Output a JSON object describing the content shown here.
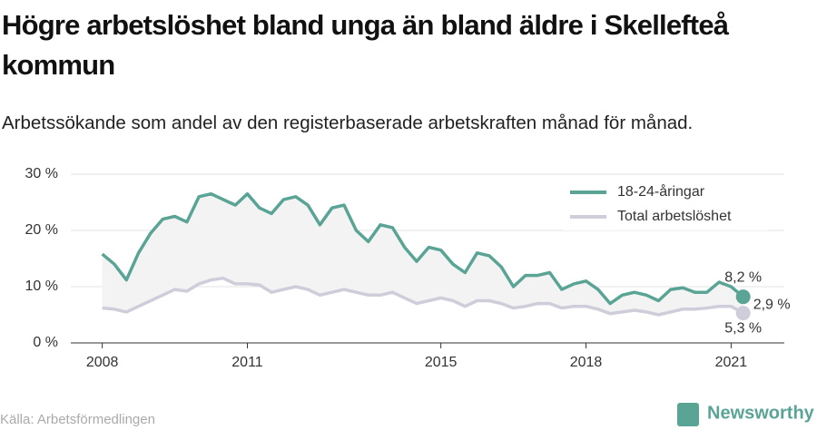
{
  "chart_data": {
    "type": "line",
    "title": "Högre arbetslöshet bland unga än bland äldre i Skellefteå kommun",
    "subtitle": "Arbetssökande som andel av den registerbaserade arbetskraften månad för månad.",
    "source": "Källa: Arbetsförmedlingen",
    "brand": "Newsworthy",
    "x": [
      2008,
      2008.25,
      2008.5,
      2008.75,
      2009,
      2009.25,
      2009.5,
      2009.75,
      2010,
      2010.25,
      2010.5,
      2010.75,
      2011,
      2011.25,
      2011.5,
      2011.75,
      2012,
      2012.25,
      2012.5,
      2012.75,
      2013,
      2013.25,
      2013.5,
      2013.75,
      2014,
      2014.25,
      2014.5,
      2014.75,
      2015,
      2015.25,
      2015.5,
      2015.75,
      2016,
      2016.25,
      2016.5,
      2016.75,
      2017,
      2017.25,
      2017.5,
      2017.75,
      2018,
      2018.25,
      2018.5,
      2018.75,
      2019,
      2019.25,
      2019.5,
      2019.75,
      2020,
      2020.25,
      2020.5,
      2020.75,
      2021,
      2021.25
    ],
    "series": [
      {
        "name": "18-24-åringar",
        "color": "#5aa496",
        "values": [
          15.8,
          14,
          11.2,
          16,
          19.5,
          22,
          22.5,
          21.5,
          26,
          26.5,
          25.5,
          24.5,
          26.5,
          24,
          23,
          25.5,
          26,
          24.5,
          21,
          24,
          24.5,
          20,
          18,
          21,
          20.5,
          17,
          14.5,
          17,
          16.5,
          14,
          12.5,
          16,
          15.5,
          13.5,
          10,
          12,
          12,
          12.5,
          9.5,
          10.5,
          11,
          9.5,
          7,
          8.5,
          9,
          8.5,
          7.5,
          9.5,
          9.8,
          9,
          9,
          10.8,
          10,
          8.2
        ],
        "end_label": "8,2 %"
      },
      {
        "name": "Total arbetslöshet",
        "color": "#cfcdd9",
        "values": [
          6.2,
          6,
          5.5,
          6.5,
          7.5,
          8.5,
          9.5,
          9.2,
          10.5,
          11.2,
          11.5,
          10.5,
          10.5,
          10.3,
          9,
          9.5,
          10,
          9.5,
          8.5,
          9,
          9.5,
          9,
          8.5,
          8.5,
          9,
          8,
          7,
          7.5,
          8,
          7.5,
          6.5,
          7.5,
          7.5,
          7,
          6.2,
          6.5,
          7,
          7,
          6.2,
          6.5,
          6.5,
          6,
          5.2,
          5.5,
          5.8,
          5.5,
          5,
          5.5,
          6,
          6,
          6.2,
          6.5,
          6.5,
          5.3
        ],
        "end_label": "5,3 %"
      }
    ],
    "gap_annotation": {
      "value": 2.9,
      "label": "2,9 %"
    },
    "xlim": [
      2007.2,
      2022.1
    ],
    "xticks": [
      2008,
      2011,
      2015,
      2018,
      2021
    ],
    "ylim": [
      0,
      30
    ],
    "yticks": [
      {
        "value": 0,
        "label": "0 %"
      },
      {
        "value": 10,
        "label": "10 %"
      },
      {
        "value": 20,
        "label": "20 %"
      },
      {
        "value": 30,
        "label": "30 %"
      }
    ],
    "grid": true
  }
}
